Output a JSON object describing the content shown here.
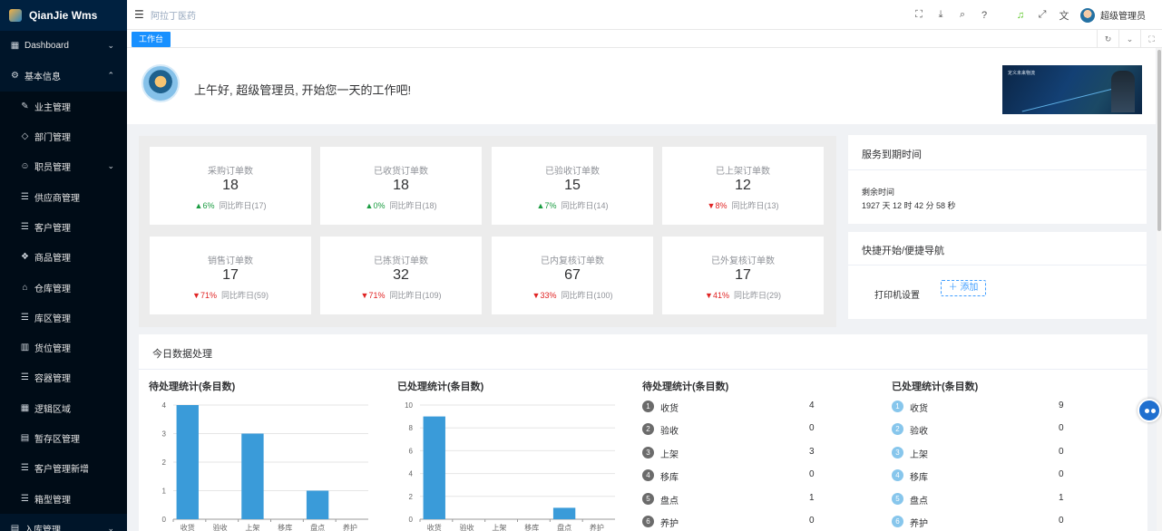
{
  "brand": {
    "name": "QianJie Wms"
  },
  "sidebar": {
    "items": [
      {
        "label": "Dashboard",
        "icon": "grid-icon",
        "glyph": "▦",
        "arrow": "⌄",
        "sub": false
      },
      {
        "label": "基本信息",
        "icon": "gear-icon",
        "glyph": "⚙",
        "arrow": "⌃",
        "sub": false
      },
      {
        "label": "业主管理",
        "icon": "edit-icon",
        "glyph": "✎",
        "arrow": "",
        "sub": true
      },
      {
        "label": "部门管理",
        "icon": "diamond-icon",
        "glyph": "◇",
        "arrow": "",
        "sub": true
      },
      {
        "label": "职员管理",
        "icon": "user-icon",
        "glyph": "☺",
        "arrow": "⌄",
        "sub": true
      },
      {
        "label": "供应商管理",
        "icon": "list-icon",
        "glyph": "☰",
        "arrow": "",
        "sub": true
      },
      {
        "label": "客户管理",
        "icon": "list-icon",
        "glyph": "☰",
        "arrow": "",
        "sub": true
      },
      {
        "label": "商品管理",
        "icon": "dropbox-icon",
        "glyph": "❖",
        "arrow": "",
        "sub": true
      },
      {
        "label": "仓库管理",
        "icon": "home-icon",
        "glyph": "⌂",
        "arrow": "",
        "sub": true
      },
      {
        "label": "库区管理",
        "icon": "list-icon",
        "glyph": "☰",
        "arrow": "",
        "sub": true
      },
      {
        "label": "货位管理",
        "icon": "grid-icon",
        "glyph": "▥",
        "arrow": "",
        "sub": true
      },
      {
        "label": "容器管理",
        "icon": "list-icon",
        "glyph": "☰",
        "arrow": "",
        "sub": true
      },
      {
        "label": "逻辑区域",
        "icon": "grid-icon",
        "glyph": "▦",
        "arrow": "",
        "sub": true
      },
      {
        "label": "暂存区管理",
        "icon": "box-icon",
        "glyph": "▤",
        "arrow": "",
        "sub": true
      },
      {
        "label": "客户管理新增",
        "icon": "list-icon",
        "glyph": "☰",
        "arrow": "",
        "sub": true
      },
      {
        "label": "箱型管理",
        "icon": "list-icon",
        "glyph": "☰",
        "arrow": "",
        "sub": true
      },
      {
        "label": "入库管理",
        "icon": "file-icon",
        "glyph": "▤",
        "arrow": "⌄",
        "sub": false
      }
    ]
  },
  "header": {
    "breadcrumb": "阿拉丁医药",
    "username": "超级管理员",
    "icons": [
      "fullscreen-icon",
      "download-icon",
      "search-icon",
      "help-icon",
      "bell-icon",
      "expand-icon",
      "translate-icon"
    ]
  },
  "tags": {
    "active": "工作台"
  },
  "welcome": {
    "greeting": "上午好, 超级管理员, 开始您一天的工作吧!",
    "banner_text": "定义未来物流"
  },
  "stats": [
    {
      "label": "采购订单数",
      "value": "18",
      "trend": "up",
      "pct": "6%",
      "compare": "同比昨日(17)"
    },
    {
      "label": "已收货订单数",
      "value": "18",
      "trend": "up",
      "pct": "0%",
      "compare": "同比昨日(18)"
    },
    {
      "label": "已验收订单数",
      "value": "15",
      "trend": "up",
      "pct": "7%",
      "compare": "同比昨日(14)"
    },
    {
      "label": "已上架订单数",
      "value": "12",
      "trend": "down",
      "pct": "8%",
      "compare": "同比昨日(13)"
    },
    {
      "label": "销售订单数",
      "value": "17",
      "trend": "down",
      "pct": "71%",
      "compare": "同比昨日(59)"
    },
    {
      "label": "已拣货订单数",
      "value": "32",
      "trend": "down",
      "pct": "71%",
      "compare": "同比昨日(109)"
    },
    {
      "label": "已内复核订单数",
      "value": "67",
      "trend": "down",
      "pct": "33%",
      "compare": "同比昨日(100)"
    },
    {
      "label": "已外复核订单数",
      "value": "17",
      "trend": "down",
      "pct": "41%",
      "compare": "同比昨日(29)"
    }
  ],
  "service": {
    "title": "服务到期时间",
    "remain_label": "剩余时间",
    "remain_value": "1927 天 12 时 42 分 58 秒"
  },
  "quick": {
    "title": "快捷开始/便捷导航",
    "item": "打印机设置",
    "add_label": "添加"
  },
  "today": {
    "title": "今日数据处理",
    "pending_title": "待处理统计(条目数)",
    "done_title": "已处理统计(条目数)",
    "pending_list_title": "待处理统计(条目数)",
    "done_list_title": "已处理统计(条目数)",
    "pending_list": [
      {
        "idx": "1",
        "name": "收货",
        "value": "4"
      },
      {
        "idx": "2",
        "name": "验收",
        "value": "0"
      },
      {
        "idx": "3",
        "name": "上架",
        "value": "3"
      },
      {
        "idx": "4",
        "name": "移库",
        "value": "0"
      },
      {
        "idx": "5",
        "name": "盘点",
        "value": "1"
      },
      {
        "idx": "6",
        "name": "养护",
        "value": "0"
      }
    ],
    "done_list": [
      {
        "idx": "1",
        "name": "收货",
        "value": "9"
      },
      {
        "idx": "2",
        "name": "验收",
        "value": "0"
      },
      {
        "idx": "3",
        "name": "上架",
        "value": "0"
      },
      {
        "idx": "4",
        "name": "移库",
        "value": "0"
      },
      {
        "idx": "5",
        "name": "盘点",
        "value": "1"
      },
      {
        "idx": "6",
        "name": "养护",
        "value": "0"
      }
    ]
  },
  "chart_data": [
    {
      "type": "bar",
      "title": "待处理统计(条目数)",
      "categories": [
        "收货",
        "验收",
        "上架",
        "移库",
        "盘点",
        "养护"
      ],
      "values": [
        4,
        0,
        3,
        0,
        1,
        0
      ],
      "yticks": [
        0,
        1,
        2,
        3,
        4
      ],
      "ylim": [
        0,
        4
      ],
      "color": "#3a9bd9",
      "grid": true
    },
    {
      "type": "bar",
      "title": "已处理统计(条目数)",
      "categories": [
        "收货",
        "验收",
        "上架",
        "移库",
        "盘点",
        "养护"
      ],
      "values": [
        9,
        0,
        0,
        0,
        1,
        0
      ],
      "yticks": [
        0,
        2,
        4,
        6,
        8,
        10
      ],
      "ylim": [
        0,
        10
      ],
      "color": "#3a9bd9",
      "grid": true
    }
  ]
}
